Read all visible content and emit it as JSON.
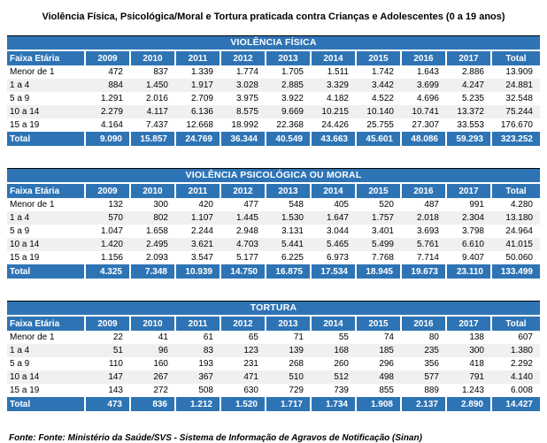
{
  "page": {
    "title": "Violência Física, Psicológica/Moral e Tortura praticada contra Crianças e Adolescentes (0 a 19 anos)",
    "source": "Fonte: Fonte: Ministério da Saúde/SVS - Sistema de Informação de Agravos de Notificação (Sinan)"
  },
  "colors": {
    "header_blue": "#2E74B5",
    "stripe_gray": "#F0F0F0",
    "top_border": "#000000",
    "header_text": "#FFFFFF"
  },
  "columns": [
    "Faixa Etária",
    "2009",
    "2010",
    "2011",
    "2012",
    "2013",
    "2014",
    "2015",
    "2016",
    "2017",
    "Total"
  ],
  "tables": [
    {
      "title": "VIOLÊNCIA FÍSICA",
      "rows": [
        {
          "label": "Menor de 1",
          "values": [
            "472",
            "837",
            "1.339",
            "1.774",
            "1.705",
            "1.511",
            "1.742",
            "1.643",
            "2.886",
            "13.909"
          ]
        },
        {
          "label": "1 a 4",
          "values": [
            "884",
            "1.450",
            "1.917",
            "3.028",
            "2.885",
            "3.329",
            "3.442",
            "3.699",
            "4.247",
            "24.881"
          ]
        },
        {
          "label": "5 a 9",
          "values": [
            "1.291",
            "2.016",
            "2.709",
            "3.975",
            "3.922",
            "4.182",
            "4.522",
            "4.696",
            "5.235",
            "32.548"
          ]
        },
        {
          "label": "10 a 14",
          "values": [
            "2.279",
            "4.117",
            "6.136",
            "8.575",
            "9.669",
            "10.215",
            "10.140",
            "10.741",
            "13.372",
            "75.244"
          ]
        },
        {
          "label": "15 a 19",
          "values": [
            "4.164",
            "7.437",
            "12.668",
            "18.992",
            "22.368",
            "24.426",
            "25.755",
            "27.307",
            "33.553",
            "176.670"
          ]
        }
      ],
      "total": {
        "label": "Total",
        "values": [
          "9.090",
          "15.857",
          "24.769",
          "36.344",
          "40.549",
          "43.663",
          "45.601",
          "48.086",
          "59.293",
          "323.252"
        ]
      }
    },
    {
      "title": "VIOLÊNCIA PSICOLÓGICA OU MORAL",
      "rows": [
        {
          "label": "Menor de 1",
          "values": [
            "132",
            "300",
            "420",
            "477",
            "548",
            "405",
            "520",
            "487",
            "991",
            "4.280"
          ]
        },
        {
          "label": "1 a 4",
          "values": [
            "570",
            "802",
            "1.107",
            "1.445",
            "1.530",
            "1.647",
            "1.757",
            "2.018",
            "2.304",
            "13.180"
          ]
        },
        {
          "label": "5 a 9",
          "values": [
            "1.047",
            "1.658",
            "2.244",
            "2.948",
            "3.131",
            "3.044",
            "3.401",
            "3.693",
            "3.798",
            "24.964"
          ]
        },
        {
          "label": "10 a 14",
          "values": [
            "1.420",
            "2.495",
            "3.621",
            "4.703",
            "5.441",
            "5.465",
            "5.499",
            "5.761",
            "6.610",
            "41.015"
          ]
        },
        {
          "label": "15 a 19",
          "values": [
            "1.156",
            "2.093",
            "3.547",
            "5.177",
            "6.225",
            "6.973",
            "7.768",
            "7.714",
            "9.407",
            "50.060"
          ]
        }
      ],
      "total": {
        "label": "Total",
        "values": [
          "4.325",
          "7.348",
          "10.939",
          "14.750",
          "16.875",
          "17.534",
          "18.945",
          "19.673",
          "23.110",
          "133.499"
        ]
      }
    },
    {
      "title": "TORTURA",
      "rows": [
        {
          "label": "Menor de 1",
          "values": [
            "22",
            "41",
            "61",
            "65",
            "71",
            "55",
            "74",
            "80",
            "138",
            "607"
          ]
        },
        {
          "label": "1 a 4",
          "values": [
            "51",
            "96",
            "83",
            "123",
            "139",
            "168",
            "185",
            "235",
            "300",
            "1.380"
          ]
        },
        {
          "label": "5 a 9",
          "values": [
            "110",
            "160",
            "193",
            "231",
            "268",
            "260",
            "296",
            "356",
            "418",
            "2.292"
          ]
        },
        {
          "label": "10 a 14",
          "values": [
            "147",
            "267",
            "367",
            "471",
            "510",
            "512",
            "498",
            "577",
            "791",
            "4.140"
          ]
        },
        {
          "label": "15 a 19",
          "values": [
            "143",
            "272",
            "508",
            "630",
            "729",
            "739",
            "855",
            "889",
            "1.243",
            "6.008"
          ]
        }
      ],
      "total": {
        "label": "Total",
        "values": [
          "473",
          "836",
          "1.212",
          "1.520",
          "1.717",
          "1.734",
          "1.908",
          "2.137",
          "2.890",
          "14.427"
        ]
      }
    }
  ]
}
